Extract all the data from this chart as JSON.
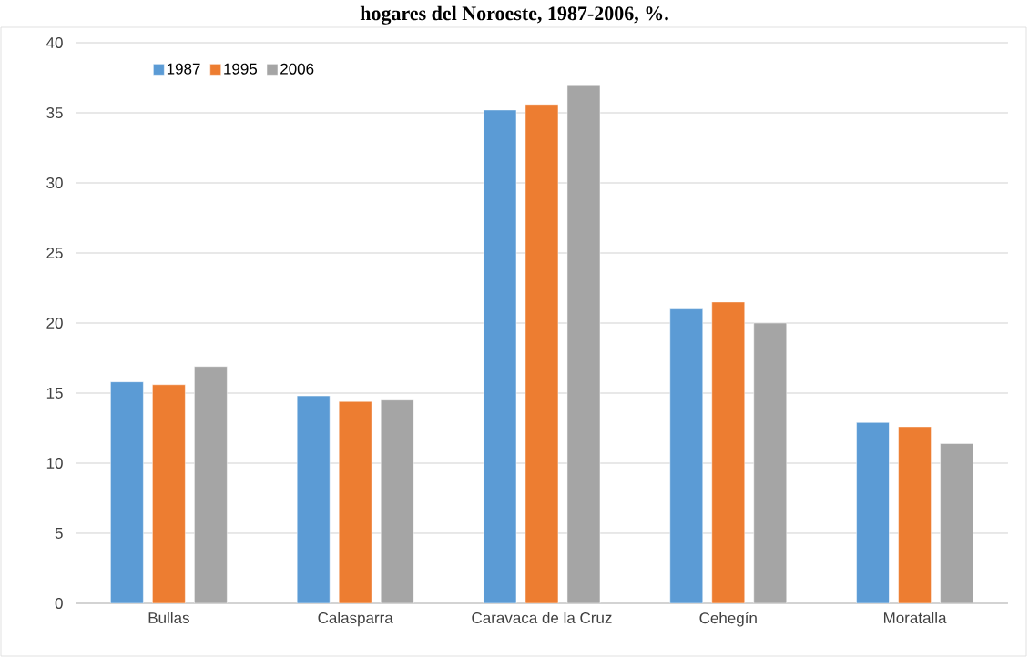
{
  "chart_data": {
    "type": "bar",
    "title": "hogares del Noroeste, 1987-2006, %.",
    "categories": [
      "Bullas",
      "Calasparra",
      "Caravaca de la Cruz",
      "Cehegín",
      "Moratalla"
    ],
    "series": [
      {
        "name": "1987",
        "color": "#5b9bd5",
        "values": [
          15.8,
          14.8,
          35.2,
          21.0,
          12.9
        ]
      },
      {
        "name": "1995",
        "color": "#ed7d31",
        "values": [
          15.6,
          14.4,
          35.6,
          21.5,
          12.6
        ]
      },
      {
        "name": "2006",
        "color": "#a5a5a5",
        "values": [
          16.9,
          14.5,
          37.0,
          20.0,
          11.4
        ]
      }
    ],
    "ylim": [
      0,
      40
    ],
    "yticks": [
      0,
      5,
      10,
      15,
      20,
      25,
      30,
      35,
      40
    ],
    "grid": "y",
    "legend": "top left"
  }
}
